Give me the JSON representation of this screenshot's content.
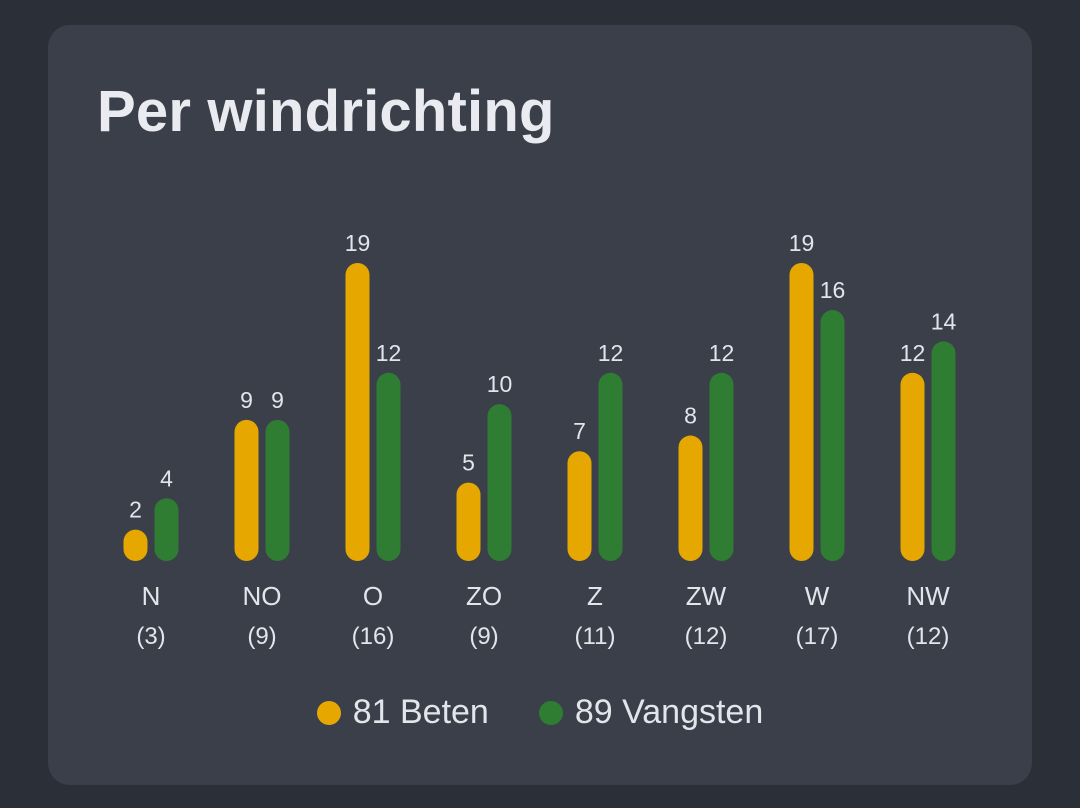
{
  "card": {
    "title": "Per windrichting"
  },
  "colors": {
    "background": "#2b2f38",
    "card": "#3b3f4a",
    "beten": "#e6a800",
    "vangsten": "#2f7d32",
    "text": "#e3e5ea"
  },
  "legend": {
    "beten": "81 Beten",
    "vangsten": "89 Vangsten"
  },
  "chart_data": {
    "type": "bar",
    "title": "Per windrichting",
    "categories": [
      "N",
      "NO",
      "O",
      "ZO",
      "Z",
      "ZW",
      "W",
      "NW"
    ],
    "category_counts": [
      "(3)",
      "(9)",
      "(16)",
      "(9)",
      "(11)",
      "(12)",
      "(17)",
      "(12)"
    ],
    "series": [
      {
        "name": "81 Beten",
        "color": "#e6a800",
        "values": [
          2,
          9,
          19,
          5,
          7,
          8,
          19,
          12
        ]
      },
      {
        "name": "89 Vangsten",
        "color": "#2f7d32",
        "values": [
          4,
          9,
          12,
          10,
          12,
          12,
          16,
          14
        ]
      }
    ],
    "ylim": [
      0,
      19
    ],
    "grid": false,
    "legend_position": "bottom"
  }
}
